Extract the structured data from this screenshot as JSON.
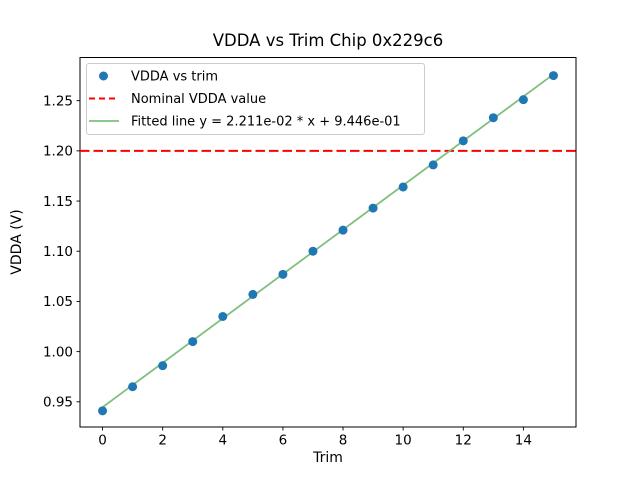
{
  "figure": {
    "background": "#ffffff"
  },
  "chart_data": {
    "type": "scatter",
    "title": "VDDA vs Trim Chip 0x229c6",
    "xlabel": "Trim",
    "ylabel": "VDDA (V)",
    "xlim": [
      -0.75,
      15.75
    ],
    "ylim": [
      0.9249,
      1.293
    ],
    "grid": false,
    "x_ticks": [
      {
        "value": 0,
        "label": "0"
      },
      {
        "value": 2,
        "label": "2"
      },
      {
        "value": 4,
        "label": "4"
      },
      {
        "value": 6,
        "label": "6"
      },
      {
        "value": 8,
        "label": "8"
      },
      {
        "value": 10,
        "label": "10"
      },
      {
        "value": 12,
        "label": "12"
      },
      {
        "value": 14,
        "label": "14"
      }
    ],
    "y_ticks": [
      {
        "value": 0.95,
        "label": "0.95"
      },
      {
        "value": 1.0,
        "label": "1.00"
      },
      {
        "value": 1.05,
        "label": "1.05"
      },
      {
        "value": 1.1,
        "label": "1.10"
      },
      {
        "value": 1.15,
        "label": "1.15"
      },
      {
        "value": 1.2,
        "label": "1.20"
      },
      {
        "value": 1.25,
        "label": "1.25"
      }
    ],
    "nominal_vdda": 1.2,
    "fit": {
      "slope": 0.02211,
      "intercept": 0.9446,
      "x_range": [
        0,
        15
      ]
    },
    "series": [
      {
        "name": "VDDA vs trim",
        "type": "scatter",
        "color": "#1f77b4",
        "x": [
          0,
          1,
          2,
          3,
          4,
          5,
          6,
          7,
          8,
          9,
          10,
          11,
          12,
          13,
          14,
          15
        ],
        "y": [
          0.941,
          0.965,
          0.986,
          1.01,
          1.035,
          1.057,
          1.077,
          1.1,
          1.121,
          1.143,
          1.164,
          1.186,
          1.21,
          1.233,
          1.251,
          1.275
        ]
      },
      {
        "name": "Nominal VDDA value",
        "type": "hline",
        "color": "#ff0000",
        "linestyle": "dashed",
        "y": 1.2
      },
      {
        "name": "Fitted line y = 2.211e-02 * x + 9.446e-01",
        "type": "line",
        "color": "#7fbf7f",
        "linestyle": "solid"
      }
    ],
    "legend": {
      "position": "upper-left",
      "entries": [
        {
          "label": "VDDA vs trim",
          "glyph": "marker",
          "color": "#1f77b4"
        },
        {
          "label": "Nominal VDDA value",
          "glyph": "dashed-line",
          "color": "#ff0000"
        },
        {
          "label": "Fitted line y = 2.211e-02 * x + 9.446e-01",
          "glyph": "line",
          "color": "#7fbf7f"
        }
      ]
    }
  }
}
